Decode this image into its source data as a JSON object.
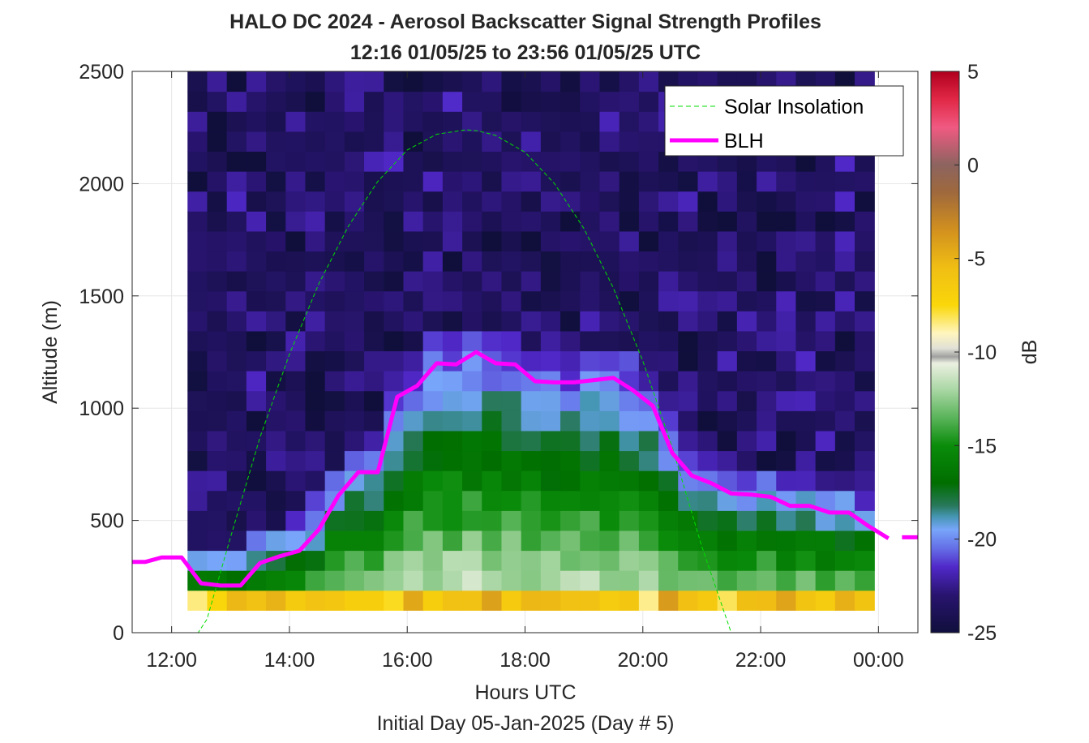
{
  "chart_data": {
    "type": "heatmap",
    "title": "HALO DC 2024 - Aerosol Backscatter Signal Strength Profiles",
    "subtitle": "12:16 01/05/25 to 23:56 01/05/25  UTC",
    "xlabel": "Hours UTC",
    "xlabel2": "Initial Day 05-Jan-2025 (Day # 5)",
    "ylabel": "Altitude (m)",
    "colorbar_label": "dB",
    "xlim": [
      11.33,
      24.67
    ],
    "ylim": [
      0,
      2500
    ],
    "clim": [
      -25,
      5
    ],
    "x_tick_values": [
      12,
      14,
      16,
      18,
      20,
      22,
      24
    ],
    "x_tick_labels": [
      "12:00",
      "14:00",
      "16:00",
      "18:00",
      "20:00",
      "22:00",
      "00:00"
    ],
    "y_ticks": [
      0,
      500,
      1000,
      1500,
      2000,
      2500
    ],
    "cbar_ticks": [
      5,
      0,
      -5,
      -10,
      -15,
      -20,
      -25
    ],
    "grid": true,
    "heatmap": {
      "x_start": 12.27,
      "x_end": 23.93,
      "n_cols": 35,
      "y_start": 100,
      "y_end": 2500,
      "n_rows": 27,
      "low_level_db": [
        -9,
        -9,
        -8,
        -9,
        -10,
        -11,
        -12,
        -13,
        -13,
        -14,
        -15,
        -15,
        -16,
        -16,
        -16,
        -17,
        -17,
        -18,
        -19,
        -20,
        -21,
        -22,
        -22,
        -23,
        -23,
        -23,
        -23
      ],
      "aloft_db": -23.5,
      "surface_db": -6
    },
    "series": [
      {
        "name": "Solar Insolation",
        "type": "line",
        "style": "dashed",
        "color": "#00dd00",
        "x": [
          11.33,
          12.45,
          12.6,
          13.0,
          13.5,
          14.0,
          14.5,
          15.0,
          15.5,
          16.0,
          16.5,
          17.0,
          17.2,
          17.5,
          18.0,
          18.5,
          19.0,
          19.5,
          20.0,
          20.5,
          21.0,
          21.5,
          21.95,
          22.1,
          24.67
        ],
        "y": [
          0,
          0,
          60,
          425,
          870,
          1240,
          1555,
          1810,
          2010,
          2150,
          2220,
          2240,
          2235,
          2215,
          2140,
          2000,
          1800,
          1535,
          1210,
          825,
          385,
          0,
          0,
          0,
          0
        ]
      },
      {
        "name": "BLH",
        "type": "line",
        "color": "#ff00ff",
        "x": [
          11.33,
          11.55,
          11.83,
          12.17,
          12.5,
          12.83,
          13.17,
          13.5,
          13.83,
          14.17,
          14.5,
          14.83,
          15.17,
          15.5,
          15.83,
          16.17,
          16.5,
          16.83,
          17.17,
          17.5,
          17.83,
          18.17,
          18.5,
          18.83,
          19.17,
          19.5,
          19.83,
          20.17,
          20.5,
          20.83,
          21.17,
          21.5,
          21.83,
          22.17,
          22.5,
          22.83,
          23.17,
          23.5,
          23.83,
          24.17
        ],
        "y": [
          315,
          315,
          335,
          335,
          220,
          210,
          210,
          310,
          340,
          365,
          460,
          610,
          715,
          715,
          1050,
          1100,
          1200,
          1195,
          1250,
          1200,
          1195,
          1120,
          1115,
          1115,
          1125,
          1135,
          1080,
          1010,
          800,
          700,
          665,
          620,
          615,
          605,
          565,
          565,
          535,
          535,
          475,
          420
        ]
      },
      {
        "name": "",
        "type": "segment",
        "color": "#ff00ff",
        "x": [
          24.4,
          24.67
        ],
        "y": [
          425,
          425
        ]
      }
    ]
  }
}
